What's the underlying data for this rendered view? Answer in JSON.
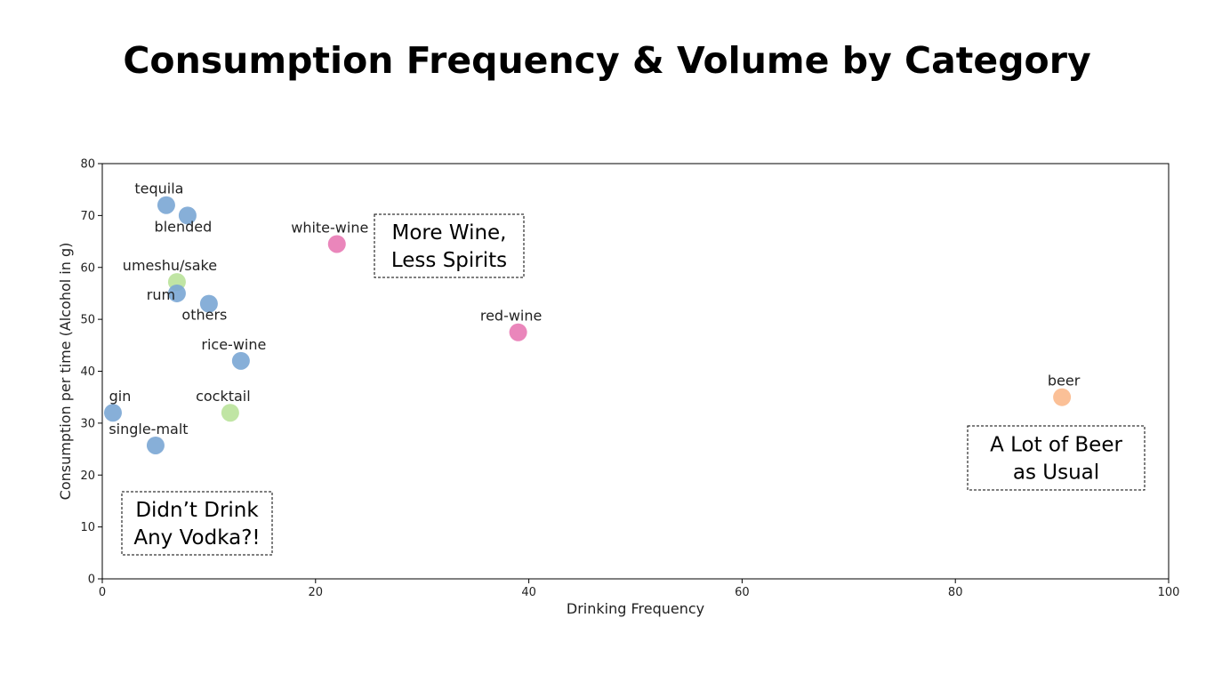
{
  "title": "Consumption Frequency & Volume by Category",
  "colors": {
    "blue": "#7aa6d4",
    "green": "#b9e29a",
    "pink": "#e879b4",
    "orange": "#fbb98c"
  },
  "chart_data": {
    "type": "scatter",
    "title": "Consumption Frequency & Volume by Category",
    "xlabel": "Drinking Frequency",
    "ylabel": "Consumption per time (Alcohol in g)",
    "xlim": [
      0,
      100
    ],
    "ylim": [
      0,
      80
    ],
    "xticks": [
      0,
      20,
      40,
      60,
      80,
      100
    ],
    "yticks": [
      0,
      10,
      20,
      30,
      40,
      50,
      60,
      70,
      80
    ],
    "grid": false,
    "points": [
      {
        "label": "tequila",
        "x": 6,
        "y": 72,
        "color": "blue",
        "label_pos": "above-left"
      },
      {
        "label": "blended",
        "x": 8,
        "y": 70,
        "color": "blue",
        "label_pos": "below"
      },
      {
        "label": "white-wine",
        "x": 22,
        "y": 64.5,
        "color": "pink",
        "label_pos": "above-left"
      },
      {
        "label": "umeshu/sake",
        "x": 7,
        "y": 57.2,
        "color": "green",
        "label_pos": "above-left"
      },
      {
        "label": "rum",
        "x": 7,
        "y": 55,
        "color": "blue",
        "label_pos": "left"
      },
      {
        "label": "others",
        "x": 10,
        "y": 53,
        "color": "blue",
        "label_pos": "below"
      },
      {
        "label": "red-wine",
        "x": 39,
        "y": 47.5,
        "color": "pink",
        "label_pos": "above-left"
      },
      {
        "label": "rice-wine",
        "x": 13,
        "y": 42,
        "color": "blue",
        "label_pos": "above-left"
      },
      {
        "label": "gin",
        "x": 1,
        "y": 32,
        "color": "blue",
        "label_pos": "above-right"
      },
      {
        "label": "cocktail",
        "x": 12,
        "y": 32,
        "color": "green",
        "label_pos": "above-left"
      },
      {
        "label": "single-malt",
        "x": 5,
        "y": 25.7,
        "color": "blue",
        "label_pos": "above-left"
      },
      {
        "label": "beer",
        "x": 90,
        "y": 35,
        "color": "orange",
        "label_pos": "above"
      }
    ],
    "annotations": [
      {
        "lines": [
          "More Wine,",
          "Less Spirits"
        ]
      },
      {
        "lines": [
          "A Lot of Beer",
          "as Usual"
        ]
      },
      {
        "lines": [
          "Didn’t Drink",
          "Any Vodka?!"
        ]
      }
    ]
  }
}
